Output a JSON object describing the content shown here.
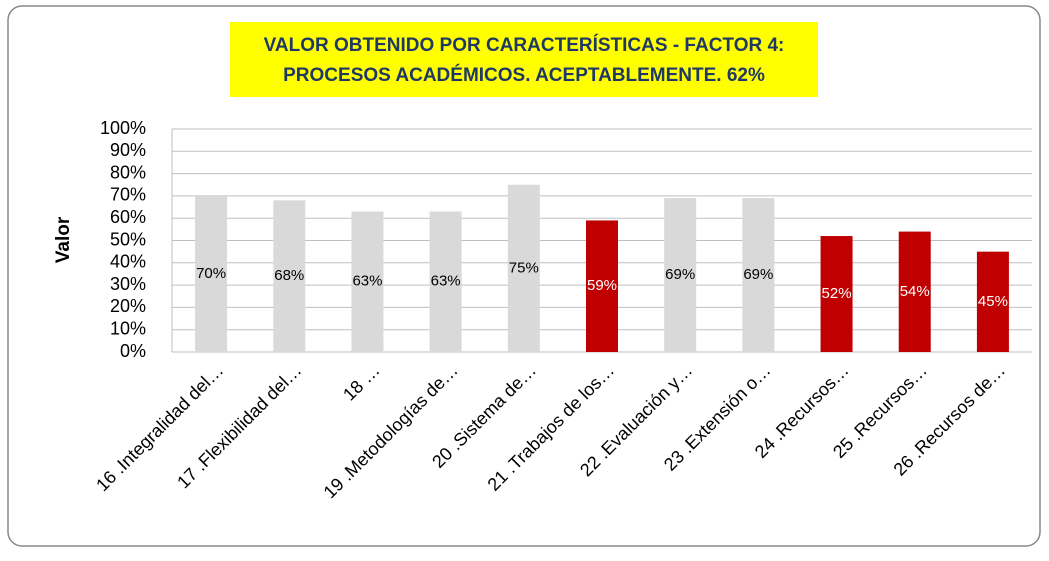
{
  "chart_data": {
    "type": "bar",
    "title": [
      "VALOR OBTENIDO POR CARACTERÍSTICAS - FACTOR 4:",
      "PROCESOS ACADÉMICOS. ACEPTABLEMENTE. 62%"
    ],
    "y_label": "Valor",
    "categories": [
      "16 .Integralidad del…",
      "17 .Flexibilidad del…",
      "18 …",
      "19 .Metodologías de…",
      "20 .Sistema de…",
      "21 .Trabajos de los…",
      "22 .Evaluación y…",
      "23 .Extensión o…",
      "24 .Recursos…",
      "25 .Recursos…",
      "26 .Recursos de…"
    ],
    "values": [
      70,
      68,
      63,
      63,
      75,
      59,
      69,
      69,
      52,
      54,
      45
    ],
    "value_labels": [
      "70%",
      "68%",
      "63%",
      "63%",
      "75%",
      "59%",
      "69%",
      "69%",
      "52%",
      "54%",
      "45%"
    ],
    "colors": [
      "#d9d9d9",
      "#d9d9d9",
      "#d9d9d9",
      "#d9d9d9",
      "#d9d9d9",
      "#c00000",
      "#d9d9d9",
      "#d9d9d9",
      "#c00000",
      "#c00000",
      "#c00000"
    ],
    "ylim": [
      0,
      100
    ],
    "yticks": [
      {
        "value": 0,
        "label": "0%"
      },
      {
        "value": 10,
        "label": "10%"
      },
      {
        "value": 20,
        "label": "20%"
      },
      {
        "value": 30,
        "label": "30%"
      },
      {
        "value": 40,
        "label": "40%"
      },
      {
        "value": 50,
        "label": "50%"
      },
      {
        "value": 60,
        "label": "60%"
      },
      {
        "value": 70,
        "label": "70%"
      },
      {
        "value": 80,
        "label": "80%"
      },
      {
        "value": 90,
        "label": "90%"
      },
      {
        "value": 100,
        "label": "100%"
      }
    ],
    "grid": true
  }
}
